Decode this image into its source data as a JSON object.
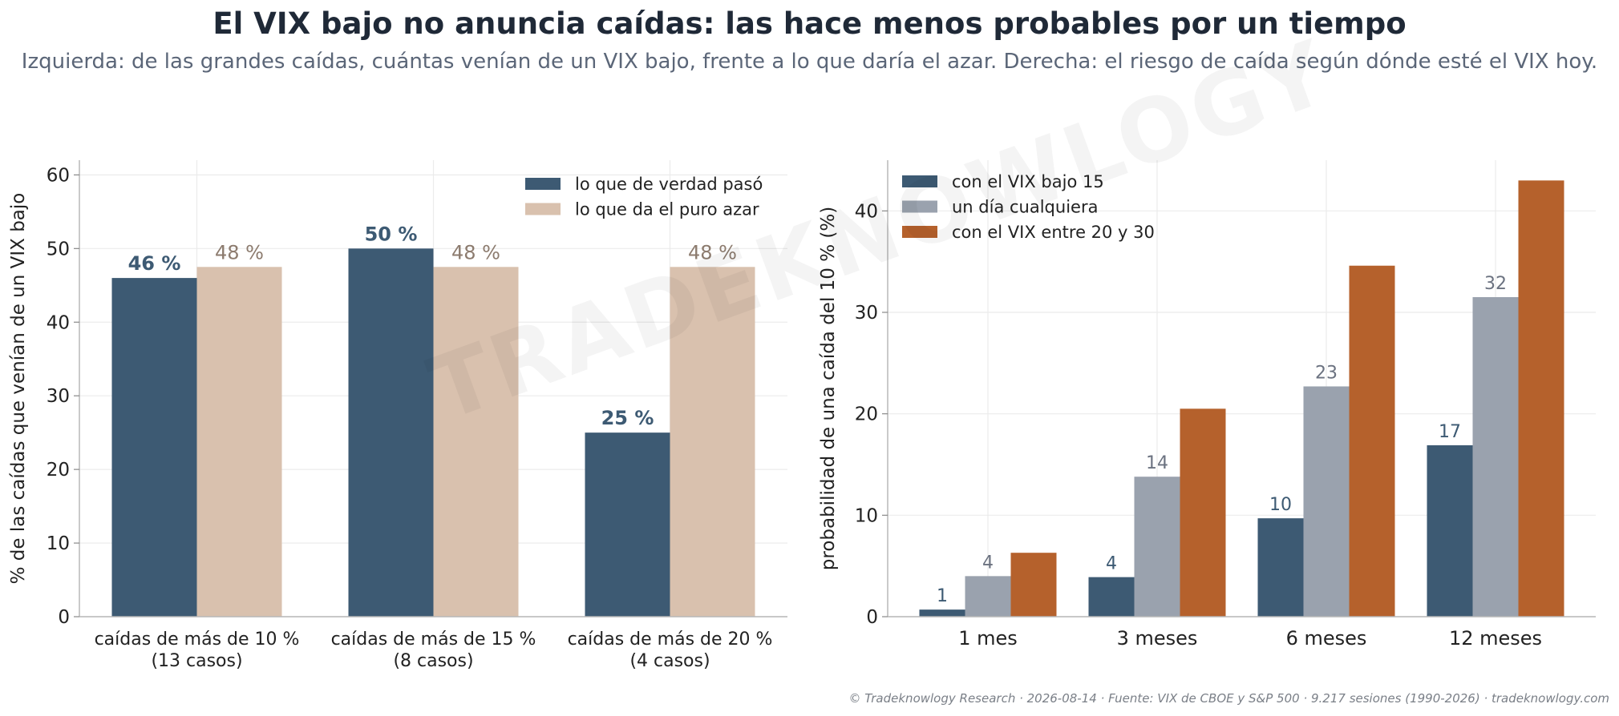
{
  "title": "El VIX bajo no anuncia caídas: las hace menos probables por un tiempo",
  "subtitle": "Izquierda: de las grandes caídas, cuántas venían de un VIX bajo, frente a lo que daría el azar.  Derecha: el riesgo de caída según dónde esté el VIX hoy.",
  "footer": "© Tradeknowlogy Research   ·   2026-08-14   ·   Fuente: VIX de CBOE y S&P 500 · 9.217 sesiones (1990-2026)   ·   tradeknowlogy.com",
  "watermark": "TRADEKNOWLOGY",
  "chart_data": [
    {
      "type": "bar",
      "categories": [
        [
          "caídas de más de 10 %",
          "(13 casos)"
        ],
        [
          "caídas de más de 15 %",
          "(8 casos)"
        ],
        [
          "caídas de más de 20 %",
          "(4 casos)"
        ]
      ],
      "series": [
        {
          "name": "lo que de verdad pasó",
          "values": [
            46,
            50,
            25
          ],
          "labels": [
            "46 %",
            "50 %",
            "25 %"
          ],
          "color": "#3d5a73",
          "label_color": "#3d5a73",
          "label_bold": true
        },
        {
          "name": "lo que da el puro azar",
          "values": [
            47.5,
            47.5,
            47.5
          ],
          "labels": [
            "48 %",
            "48 %",
            "48 %"
          ],
          "color": "#d9c1ae",
          "label_color": "#8c7b6e",
          "label_bold": false
        }
      ],
      "ylabel": "% de las caídas que venían de un VIX bajo",
      "ylim": [
        0,
        62
      ],
      "yticks": [
        0,
        10,
        20,
        30,
        40,
        50,
        60
      ],
      "grid": true,
      "legend": "top-right"
    },
    {
      "type": "bar",
      "categories": [
        [
          "1 mes"
        ],
        [
          "3 meses"
        ],
        [
          "6 meses"
        ],
        [
          "12 meses"
        ]
      ],
      "series": [
        {
          "name": "con el VIX bajo 15",
          "values": [
            0.7,
            3.9,
            9.7,
            16.9
          ],
          "labels": [
            "1",
            "4",
            "10",
            "17"
          ],
          "color": "#3d5a73",
          "label_color": "#3d5a73"
        },
        {
          "name": "un día cualquiera",
          "values": [
            4.0,
            13.8,
            22.7,
            31.5
          ],
          "labels": [
            "4",
            "14",
            "23",
            "32"
          ],
          "color": "#9aa2ae",
          "label_color": "#6b7280"
        },
        {
          "name": "con el VIX entre 20 y 30",
          "values": [
            6.3,
            20.5,
            34.6,
            43.0
          ],
          "labels": [],
          "color": "#b5612c"
        }
      ],
      "ylabel": "probabilidad de una caída del 10 % (%)",
      "ylim": [
        0,
        45
      ],
      "yticks": [
        0,
        10,
        20,
        30,
        40
      ],
      "grid": true,
      "legend": "top-left"
    }
  ]
}
